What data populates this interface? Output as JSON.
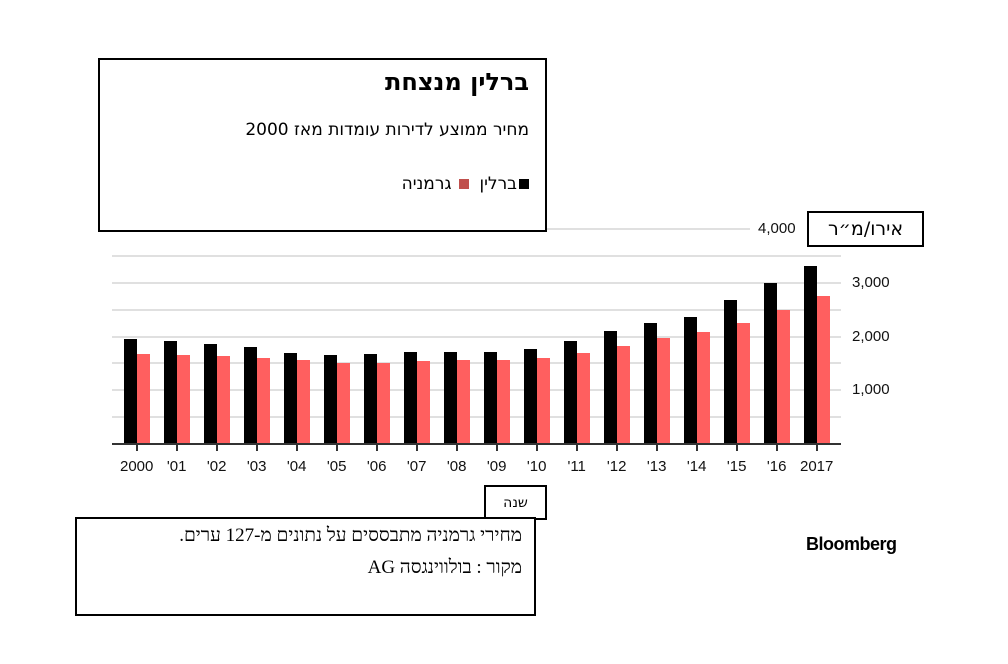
{
  "header": {
    "title": "ברלין מנצחת",
    "subtitle": "מחיר ממוצע לדירות עומדות מאז 2000",
    "legend": [
      {
        "label": "ברלין",
        "color": "#000000"
      },
      {
        "label": "גרמניה",
        "color": "#c0504d"
      }
    ]
  },
  "axes": {
    "y_unit": "אירו/מ״ר",
    "x_unit": "שנה",
    "y_ticks": [
      "4,000",
      "3,000",
      "2,000",
      "1,000"
    ]
  },
  "notes": {
    "line1": "מחירי גרמניה מתבססים על נתונים מ-127 ערים.",
    "line2": "מקור : בולווינגסה AG"
  },
  "brand": "Bloomberg",
  "colors": {
    "berlin": "#000000",
    "germany": "#ff5f5f",
    "grid": "#e0e0e0"
  },
  "chart_data": {
    "type": "bar",
    "title": "ברלין מנצחת",
    "subtitle": "מחיר ממוצע לדירות עומדות מאז 2000",
    "xlabel": "שנה",
    "ylabel": "אירו/מ״ר",
    "categories": [
      "2000",
      "'01",
      "'02",
      "'03",
      "'04",
      "'05",
      "'06",
      "'07",
      "'08",
      "'09",
      "'10",
      "'11",
      "'12",
      "'13",
      "'14",
      "'15",
      "'16",
      "2017"
    ],
    "series": [
      {
        "name": "ברלין",
        "color": "#000000",
        "values": [
          1950,
          1910,
          1865,
          1800,
          1700,
          1660,
          1680,
          1705,
          1705,
          1705,
          1760,
          1910,
          2110,
          2260,
          2360,
          2670,
          3000,
          3320
        ]
      },
      {
        "name": "גרמניה",
        "color": "#ff5f5f",
        "values": [
          1680,
          1655,
          1635,
          1595,
          1555,
          1510,
          1510,
          1535,
          1555,
          1555,
          1595,
          1700,
          1820,
          1970,
          2075,
          2260,
          2490,
          2755
        ]
      }
    ],
    "ylim": [
      0,
      4000
    ],
    "yticks": [
      1000,
      2000,
      3000,
      4000
    ],
    "grid": true,
    "grid_step": 500,
    "legend_position": "top-left box"
  }
}
